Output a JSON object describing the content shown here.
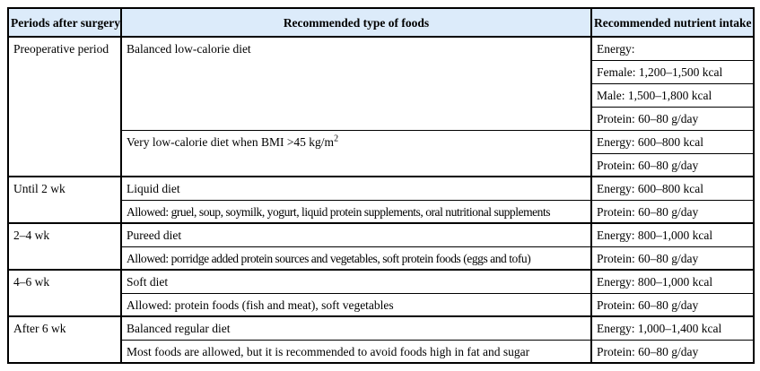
{
  "header": {
    "periods": "Periods after surgery",
    "foods": "Recommended type of foods",
    "nutrients": "Recommended nutrient intake"
  },
  "colors": {
    "header_bg": "#dcebfa",
    "border": "#000000"
  },
  "sections": [
    {
      "period": "Preoperative period",
      "foods": [
        {
          "label": "Balanced low-calorie diet",
          "nutrients": [
            "Energy:",
            "Female: 1,200–1,500 kcal",
            "Male: 1,500–1,800 kcal",
            "Protein: 60–80 g/day"
          ]
        },
        {
          "label": "Very low-calorie diet when BMI >45 kg/m",
          "label_sup": "2",
          "nutrients": [
            "Energy: 600–800 kcal",
            "Protein: 60–80 g/day"
          ]
        }
      ]
    },
    {
      "period": "Until 2 wk",
      "foods": [
        {
          "label": "Liquid diet",
          "nutrients": [
            "Energy: 600–800 kcal"
          ]
        },
        {
          "label": "Allowed: gruel, soup, soymilk, yogurt, liquid protein supplements, oral nutritional supplements",
          "nutrients": [
            "Protein: 60–80 g/day"
          ]
        }
      ]
    },
    {
      "period": "2–4 wk",
      "foods": [
        {
          "label": "Pureed diet",
          "nutrients": [
            "Energy: 800–1,000 kcal"
          ]
        },
        {
          "label": "Allowed: porridge added protein sources and vegetables, soft protein foods (eggs and tofu)",
          "nutrients": [
            "Protein: 60–80 g/day"
          ]
        }
      ]
    },
    {
      "period": "4–6 wk",
      "foods": [
        {
          "label": "Soft diet",
          "nutrients": [
            "Energy: 800–1,000 kcal"
          ]
        },
        {
          "label": "Allowed: protein foods (fish and meat), soft vegetables",
          "nutrients": [
            "Protein: 60–80 g/day"
          ]
        }
      ]
    },
    {
      "period": "After 6 wk",
      "foods": [
        {
          "label": "Balanced regular diet",
          "nutrients": [
            "Energy: 1,000–1,400 kcal"
          ]
        },
        {
          "label": "Most foods are allowed, but it is recommended to avoid foods high in fat and sugar",
          "nutrients": [
            "Protein: 60–80 g/day"
          ]
        }
      ]
    }
  ]
}
